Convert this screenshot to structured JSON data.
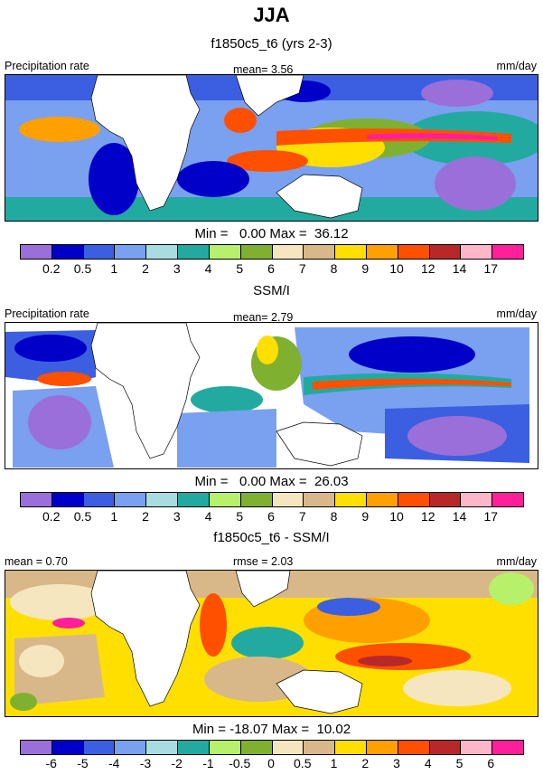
{
  "header": {
    "season": "JJA"
  },
  "palette": [
    "#9a6fd9",
    "#0000c8",
    "#3b5fe0",
    "#7aa0f0",
    "#a8dce0",
    "#22aaa0",
    "#b7f06a",
    "#80b030",
    "#f5e6c0",
    "#d8b888",
    "#ffdf00",
    "#ffa000",
    "#ff5000",
    "#b82828",
    "#ffb6c8",
    "#ff1f9a"
  ],
  "panels": [
    {
      "subtitle": "f1850c5_t6 (yrs 2-3)",
      "left_label": "Precipitation rate",
      "center_label": "mean=   3.56",
      "right_label": "mm/day",
      "minmax": "Min =   0.00 Max =  36.12",
      "ticks": [
        "0.2",
        "0.5",
        "1",
        "2",
        "3",
        "4",
        "5",
        "6",
        "7",
        "8",
        "9",
        "10",
        "12",
        "14",
        "17"
      ]
    },
    {
      "subtitle": "SSM/I",
      "left_label": "Precipitation rate",
      "center_label": "mean=   2.79",
      "right_label": "mm/day",
      "minmax": "Min =   0.00 Max =  26.03",
      "ticks": [
        "0.2",
        "0.5",
        "1",
        "2",
        "3",
        "4",
        "5",
        "6",
        "7",
        "8",
        "9",
        "10",
        "12",
        "14",
        "17"
      ]
    },
    {
      "subtitle": "f1850c5_t6 - SSM/I",
      "left_label": "mean =   0.70",
      "center_label": "rmse =   2.03",
      "right_label": "mm/day",
      "minmax": "Min = -18.07 Max =  10.02",
      "ticks": [
        "-6",
        "-5",
        "-4",
        "-3",
        "-2",
        "-1",
        "-0.5",
        "0",
        "0.5",
        "1",
        "2",
        "3",
        "4",
        "5",
        "6"
      ]
    }
  ]
}
